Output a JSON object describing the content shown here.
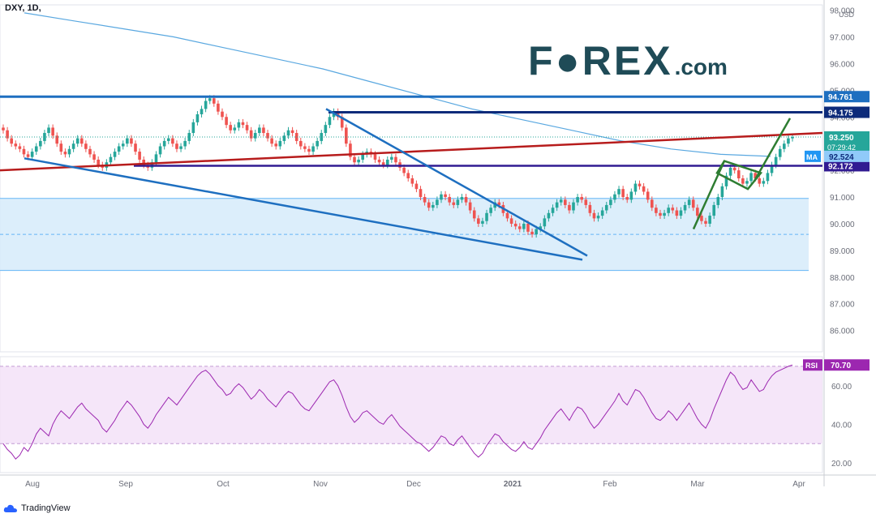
{
  "header": {
    "symbol": "DXY, 1D,"
  },
  "branding": {
    "logo_text": "F●REX",
    "logo_suffix": ".com",
    "footer": "TradingView"
  },
  "colors": {
    "up": "#26a69a",
    "down": "#ef5350",
    "ma": "#5aa8e0",
    "blue_line": "#1e6fc0",
    "navy_line": "#0d2b7a",
    "red_line": "#b71c1c",
    "purple_line": "#311b92",
    "green_flag": "#2e7d32",
    "rsi": "#9c27b0",
    "zone": "#d6ebfa"
  },
  "chart_data": [
    {
      "type": "candlestick",
      "title": "DXY, 1D,",
      "yunit": "USD",
      "ylim": [
        85.2,
        98.2
      ],
      "y_ticks": [
        86.0,
        87.0,
        88.0,
        89.0,
        90.0,
        91.0,
        92.0,
        93.0,
        94.0,
        95.0,
        96.0,
        97.0,
        98.0
      ],
      "x_ticks": [
        "Aug",
        "Sep",
        "Oct",
        "Nov",
        "Dec",
        "2021",
        "Feb",
        "Mar",
        "Apr"
      ],
      "grid": true,
      "close_series": [
        93.5,
        93.2,
        93.0,
        92.9,
        92.8,
        92.6,
        92.5,
        92.7,
        92.9,
        93.1,
        93.4,
        93.6,
        93.3,
        93.0,
        92.7,
        92.6,
        92.8,
        93.0,
        93.2,
        93.0,
        92.8,
        92.6,
        92.4,
        92.2,
        92.1,
        92.3,
        92.5,
        92.7,
        92.9,
        93.0,
        93.2,
        93.0,
        92.7,
        92.4,
        92.2,
        92.1,
        92.3,
        92.6,
        92.9,
        93.1,
        93.2,
        93.0,
        92.8,
        92.9,
        93.1,
        93.4,
        93.8,
        94.1,
        94.3,
        94.6,
        94.7,
        94.5,
        94.2,
        94.0,
        93.7,
        93.5,
        93.6,
        93.8,
        93.7,
        93.5,
        93.2,
        93.4,
        93.6,
        93.4,
        93.2,
        93.0,
        92.9,
        93.1,
        93.3,
        93.5,
        93.4,
        93.1,
        92.9,
        92.8,
        92.7,
        92.9,
        93.1,
        93.4,
        93.7,
        94.0,
        94.2,
        94.0,
        93.6,
        93.0,
        92.5,
        92.3,
        92.4,
        92.6,
        92.7,
        92.6,
        92.4,
        92.3,
        92.2,
        92.4,
        92.5,
        92.3,
        92.1,
        91.9,
        91.7,
        91.5,
        91.3,
        91.0,
        90.8,
        90.6,
        90.7,
        90.9,
        91.1,
        91.0,
        90.8,
        90.7,
        90.9,
        91.0,
        90.8,
        90.5,
        90.2,
        90.0,
        90.1,
        90.4,
        90.6,
        90.8,
        90.7,
        90.4,
        90.2,
        90.0,
        89.9,
        89.8,
        90.0,
        89.7,
        89.6,
        89.8,
        89.9,
        90.2,
        90.4,
        90.6,
        90.8,
        90.9,
        90.7,
        90.5,
        90.8,
        91.0,
        90.9,
        90.7,
        90.4,
        90.2,
        90.3,
        90.5,
        90.7,
        90.9,
        91.1,
        91.3,
        91.0,
        90.9,
        91.2,
        91.5,
        91.4,
        91.2,
        90.9,
        90.6,
        90.4,
        90.3,
        90.4,
        90.6,
        90.5,
        90.3,
        90.5,
        90.7,
        90.9,
        90.6,
        90.3,
        90.1,
        90.0,
        90.3,
        90.7,
        91.0,
        91.4,
        91.8,
        92.1,
        92.0,
        91.7,
        91.5,
        91.6,
        91.9,
        91.7,
        91.5,
        91.6,
        91.9,
        92.2,
        92.5,
        92.8,
        93.0,
        93.2,
        93.25
      ],
      "moving_average": [
        97.9,
        97.6,
        97.3,
        97.0,
        96.6,
        96.2,
        95.8,
        95.3,
        94.8,
        94.3,
        93.9,
        93.5,
        93.1,
        92.8,
        92.6,
        92.524
      ],
      "current_price": 93.25,
      "countdown": "07:29:42",
      "ma_label": "MA",
      "ma_value": 92.524,
      "horizontal_levels": [
        94.761,
        94.175,
        92.172
      ],
      "support_zone": [
        88.25,
        90.95
      ],
      "zone_midline": 89.6,
      "dotted_price_line": 93.25
    },
    {
      "type": "line",
      "name": "RSI",
      "value": 70.7,
      "ylim": [
        15,
        75
      ],
      "y_ticks": [
        20.0,
        40.0,
        60.0
      ],
      "band": [
        30,
        70
      ],
      "values": [
        30,
        27,
        25,
        22,
        24,
        28,
        26,
        30,
        35,
        38,
        36,
        34,
        40,
        44,
        47,
        45,
        43,
        46,
        49,
        51,
        48,
        46,
        44,
        42,
        38,
        36,
        39,
        42,
        46,
        49,
        52,
        50,
        47,
        44,
        40,
        38,
        41,
        45,
        48,
        51,
        54,
        52,
        50,
        53,
        56,
        59,
        62,
        65,
        67,
        68,
        66,
        63,
        60,
        58,
        55,
        56,
        59,
        61,
        59,
        56,
        53,
        55,
        58,
        56,
        53,
        51,
        49,
        52,
        55,
        57,
        56,
        53,
        50,
        48,
        47,
        50,
        53,
        56,
        59,
        62,
        63,
        60,
        55,
        49,
        44,
        41,
        43,
        46,
        47,
        45,
        43,
        41,
        40,
        43,
        45,
        42,
        39,
        37,
        35,
        33,
        31,
        30,
        28,
        26,
        28,
        31,
        34,
        33,
        30,
        29,
        32,
        34,
        31,
        28,
        25,
        23,
        25,
        29,
        32,
        35,
        34,
        31,
        29,
        27,
        26,
        28,
        31,
        28,
        27,
        30,
        33,
        37,
        40,
        43,
        46,
        48,
        45,
        42,
        46,
        49,
        48,
        45,
        41,
        38,
        40,
        43,
        46,
        49,
        52,
        56,
        52,
        50,
        54,
        58,
        57,
        54,
        50,
        46,
        43,
        42,
        44,
        47,
        45,
        42,
        45,
        48,
        51,
        47,
        43,
        40,
        38,
        42,
        48,
        53,
        58,
        63,
        67,
        65,
        61,
        58,
        59,
        63,
        60,
        57,
        58,
        62,
        65,
        67,
        68,
        69,
        70,
        70.7
      ]
    }
  ]
}
